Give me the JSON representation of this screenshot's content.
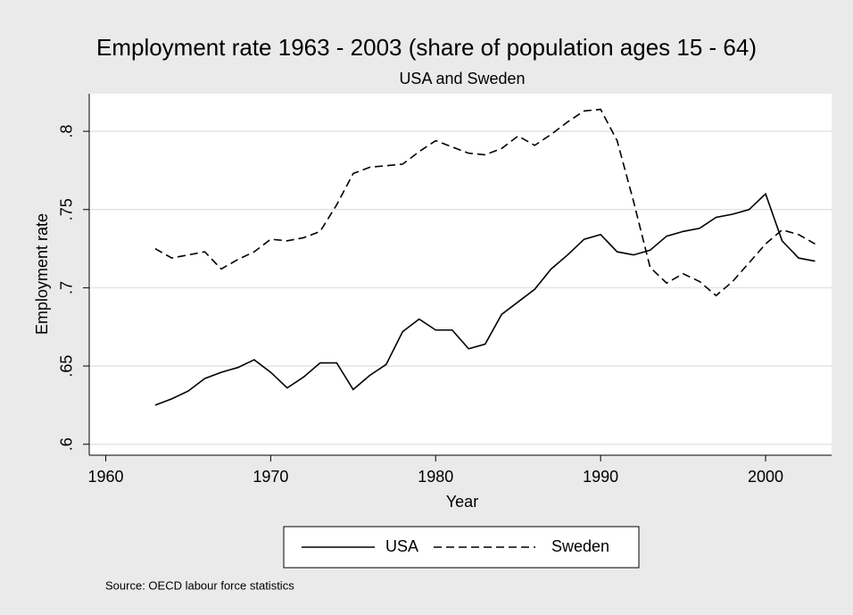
{
  "chart_data": {
    "type": "line",
    "title": "Employment rate 1963 - 2003 (share of population ages 15 - 64)",
    "subtitle": "USA and Sweden",
    "x_label": "Year",
    "y_label": "Employment rate",
    "note": "Source: OECD labour force statistics",
    "x": [
      1963,
      1964,
      1965,
      1966,
      1967,
      1968,
      1969,
      1970,
      1971,
      1972,
      1973,
      1974,
      1975,
      1976,
      1977,
      1978,
      1979,
      1980,
      1981,
      1982,
      1983,
      1984,
      1985,
      1986,
      1987,
      1988,
      1989,
      1990,
      1991,
      1992,
      1993,
      1994,
      1995,
      1996,
      1997,
      1998,
      1999,
      2000,
      2001,
      2002,
      2003
    ],
    "series": [
      {
        "name": "USA",
        "color": "#000000",
        "dash": "none",
        "values": [
          0.625,
          0.629,
          0.634,
          0.642,
          0.646,
          0.649,
          0.654,
          0.646,
          0.636,
          0.643,
          0.652,
          0.652,
          0.635,
          0.644,
          0.651,
          0.672,
          0.68,
          0.673,
          0.673,
          0.661,
          0.664,
          0.683,
          0.691,
          0.699,
          0.712,
          0.721,
          0.731,
          0.734,
          0.723,
          0.721,
          0.724,
          0.733,
          0.736,
          0.738,
          0.745,
          0.747,
          0.75,
          0.76,
          0.73,
          0.719,
          0.717
        ]
      },
      {
        "name": "Sweden",
        "color": "#000000",
        "dash": "9 5",
        "values": [
          0.725,
          0.719,
          0.721,
          0.723,
          0.712,
          0.718,
          0.723,
          0.731,
          0.73,
          0.732,
          0.736,
          0.753,
          0.773,
          0.777,
          0.778,
          0.779,
          0.787,
          0.794,
          0.79,
          0.786,
          0.785,
          0.789,
          0.797,
          0.791,
          0.798,
          0.806,
          0.813,
          0.814,
          0.794,
          0.755,
          0.713,
          0.703,
          0.709,
          0.704,
          0.695,
          0.704,
          0.716,
          0.728,
          0.737,
          0.734,
          0.728
        ]
      }
    ],
    "xlim": [
      1959,
      2004
    ],
    "xticks": [
      1960,
      1970,
      1980,
      1990,
      2000
    ],
    "ylim": [
      0.593,
      0.824
    ],
    "yticks": [
      {
        "value": 0.6,
        "label": ".6"
      },
      {
        "value": 0.65,
        "label": ".65"
      },
      {
        "value": 0.7,
        "label": ".7"
      },
      {
        "value": 0.75,
        "label": ".75"
      },
      {
        "value": 0.8,
        "label": ".8"
      }
    ],
    "grid": true,
    "legend": "bottom"
  }
}
